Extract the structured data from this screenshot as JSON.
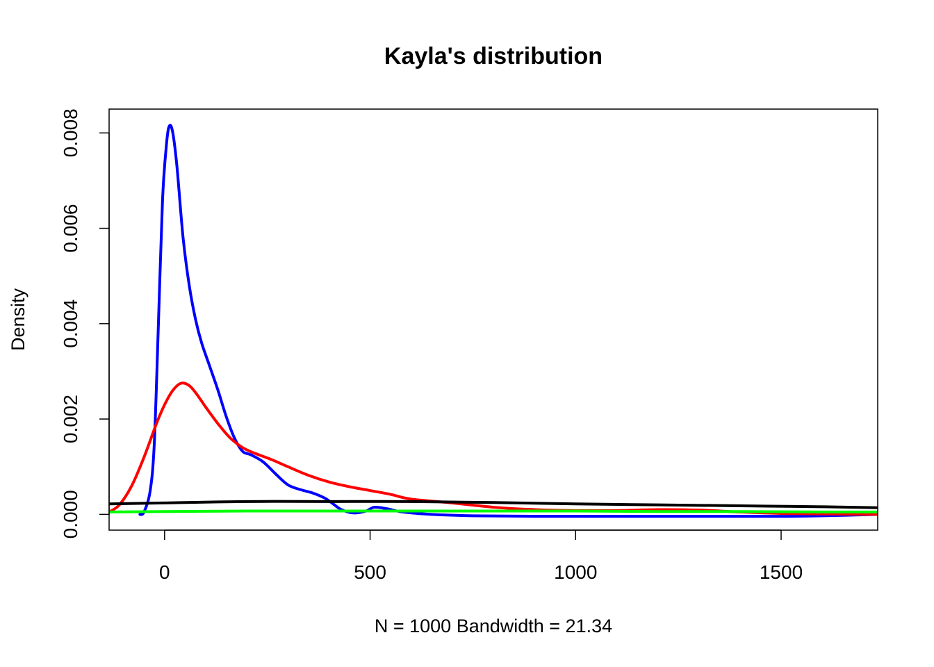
{
  "chart_data": {
    "type": "line",
    "title": "Kayla's distribution",
    "xlabel": "N = 1000   Bandwidth = 21.34",
    "ylabel": "Density",
    "xlim": [
      -135,
      1735
    ],
    "ylim": [
      -0.00033,
      0.0085
    ],
    "x_ticks": [
      0,
      500,
      1000,
      1500
    ],
    "x_tick_labels": [
      "0",
      "500",
      "1000",
      "1500"
    ],
    "y_ticks": [
      0,
      0.002,
      0.004,
      0.006,
      0.008
    ],
    "y_tick_labels": [
      "0.000",
      "0.002",
      "0.004",
      "0.006",
      "0.008"
    ],
    "grid": false,
    "legend": "none",
    "series": [
      {
        "color": "#0000ff",
        "points": [
          [
            -60,
            0.0
          ],
          [
            -50,
            5e-05
          ],
          [
            -35,
            0.0005
          ],
          [
            -25,
            0.0015
          ],
          [
            -15,
            0.004
          ],
          [
            -5,
            0.0066
          ],
          [
            5,
            0.0078
          ],
          [
            12,
            0.00815
          ],
          [
            20,
            0.008
          ],
          [
            30,
            0.0073
          ],
          [
            45,
            0.0058
          ],
          [
            60,
            0.0048
          ],
          [
            75,
            0.0041
          ],
          [
            90,
            0.0036
          ],
          [
            110,
            0.0031
          ],
          [
            130,
            0.0026
          ],
          [
            150,
            0.00205
          ],
          [
            170,
            0.0016
          ],
          [
            190,
            0.00132
          ],
          [
            210,
            0.00125
          ],
          [
            240,
            0.0011
          ],
          [
            270,
            0.00085
          ],
          [
            300,
            0.00062
          ],
          [
            330,
            0.00052
          ],
          [
            360,
            0.00045
          ],
          [
            390,
            0.00034
          ],
          [
            410,
            0.00022
          ],
          [
            430,
            0.0001
          ],
          [
            460,
            3e-05
          ],
          [
            490,
            7e-05
          ],
          [
            510,
            0.00015
          ],
          [
            540,
            0.00012
          ],
          [
            580,
            5e-05
          ],
          [
            650,
            0.0
          ],
          [
            750,
            -3e-05
          ],
          [
            900,
            -4e-05
          ],
          [
            1100,
            -4e-05
          ],
          [
            1300,
            -4e-05
          ],
          [
            1500,
            -4e-05
          ],
          [
            1600,
            -3e-05
          ],
          [
            1735,
            0.0
          ]
        ]
      },
      {
        "color": "#ff0000",
        "points": [
          [
            -135,
            5e-05
          ],
          [
            -110,
            0.0002
          ],
          [
            -80,
            0.0006
          ],
          [
            -50,
            0.0012
          ],
          [
            -20,
            0.0019
          ],
          [
            0,
            0.0023
          ],
          [
            20,
            0.0026
          ],
          [
            40,
            0.00275
          ],
          [
            60,
            0.0027
          ],
          [
            80,
            0.0025
          ],
          [
            100,
            0.00225
          ],
          [
            130,
            0.0019
          ],
          [
            160,
            0.0016
          ],
          [
            190,
            0.0014
          ],
          [
            220,
            0.00128
          ],
          [
            260,
            0.00115
          ],
          [
            300,
            0.001
          ],
          [
            350,
            0.00082
          ],
          [
            400,
            0.00068
          ],
          [
            450,
            0.00058
          ],
          [
            500,
            0.0005
          ],
          [
            550,
            0.00042
          ],
          [
            600,
            0.00032
          ],
          [
            700,
            0.00024
          ],
          [
            800,
            0.00015
          ],
          [
            900,
            0.0001
          ],
          [
            1000,
            8e-05
          ],
          [
            1100,
            8e-05
          ],
          [
            1200,
            0.0001
          ],
          [
            1300,
            9e-05
          ],
          [
            1400,
            5e-05
          ],
          [
            1500,
            2e-05
          ],
          [
            1600,
            1e-05
          ],
          [
            1735,
            0.0
          ]
        ]
      },
      {
        "color": "#000000",
        "points": [
          [
            -135,
            0.00022
          ],
          [
            0,
            0.00024
          ],
          [
            200,
            0.00027
          ],
          [
            400,
            0.00027
          ],
          [
            600,
            0.00027
          ],
          [
            800,
            0.00025
          ],
          [
            1000,
            0.00022
          ],
          [
            1200,
            0.0002
          ],
          [
            1400,
            0.00018
          ],
          [
            1600,
            0.00016
          ],
          [
            1735,
            0.00014
          ]
        ]
      },
      {
        "color": "#00ff00",
        "points": [
          [
            -135,
            5e-05
          ],
          [
            0,
            6e-05
          ],
          [
            200,
            7e-05
          ],
          [
            400,
            7e-05
          ],
          [
            600,
            7e-05
          ],
          [
            800,
            7e-05
          ],
          [
            1000,
            7e-05
          ],
          [
            1200,
            6e-05
          ],
          [
            1400,
            6e-05
          ],
          [
            1600,
            5e-05
          ],
          [
            1735,
            5e-05
          ]
        ]
      }
    ]
  }
}
